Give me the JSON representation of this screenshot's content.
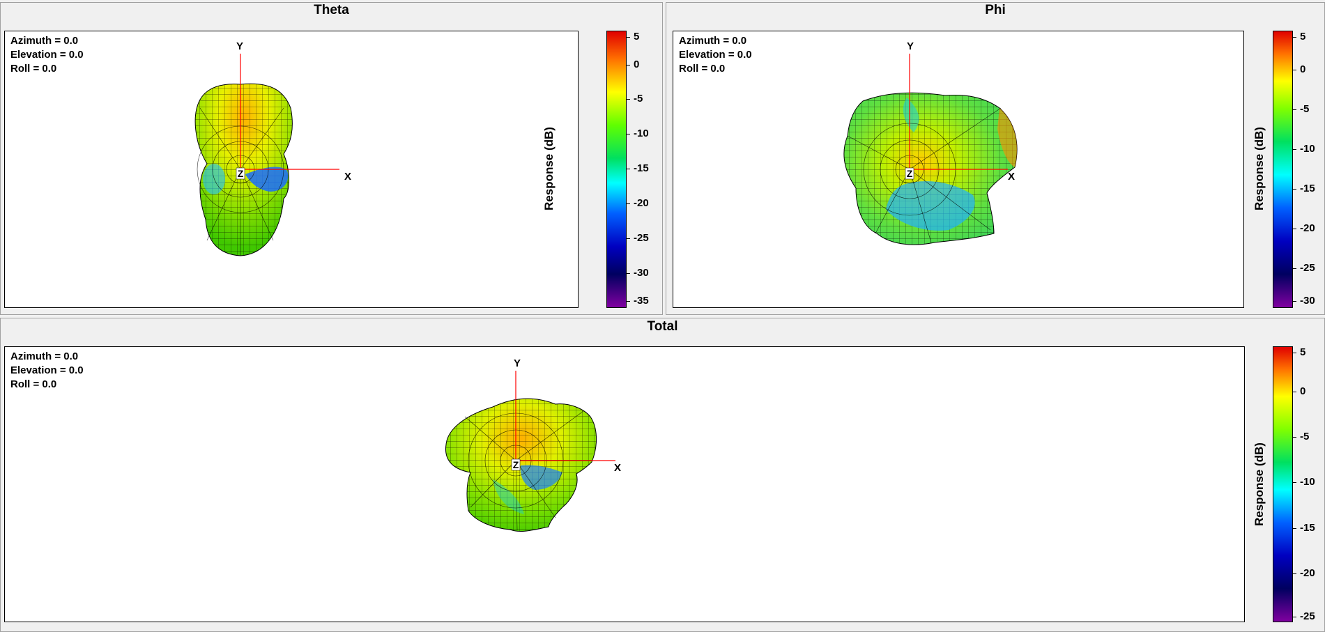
{
  "panels": {
    "theta": {
      "title": "Theta",
      "azimuth": "Azimuth = 0.0",
      "elevation": "Elevation = 0.0",
      "roll": "Roll = 0.0",
      "axis_y": "Y",
      "axis_x": "X",
      "axis_z": "Z",
      "colorbar_label": "Response  (dB)",
      "colorbar_ticks": [
        "5",
        "0",
        "-5",
        "-10",
        "-15",
        "-20",
        "-25",
        "-30",
        "-35"
      ]
    },
    "phi": {
      "title": "Phi",
      "azimuth": "Azimuth = 0.0",
      "elevation": "Elevation = 0.0",
      "roll": "Roll = 0.0",
      "axis_y": "Y",
      "axis_x": "X",
      "axis_z": "Z",
      "colorbar_label": "Response  (dB)",
      "colorbar_ticks": [
        "5",
        "0",
        "-5",
        "-10",
        "-15",
        "-20",
        "-25",
        "-30"
      ]
    },
    "total": {
      "title": "Total",
      "azimuth": "Azimuth = 0.0",
      "elevation": "Elevation = 0.0",
      "roll": "Roll = 0.0",
      "axis_y": "Y",
      "axis_x": "X",
      "axis_z": "Z",
      "colorbar_label": "Response  (dB)",
      "colorbar_ticks": [
        "5",
        "0",
        "-5",
        "-10",
        "-15",
        "-20",
        "-25"
      ]
    }
  },
  "colors": {
    "colormap": [
      "#ff0000",
      "#ff8000",
      "#ffff00",
      "#80ff00",
      "#00e000",
      "#00ffff",
      "#0060ff",
      "#0000c0",
      "#000060",
      "#600080",
      "#8000a0"
    ],
    "axis_line": "#ff0000"
  }
}
